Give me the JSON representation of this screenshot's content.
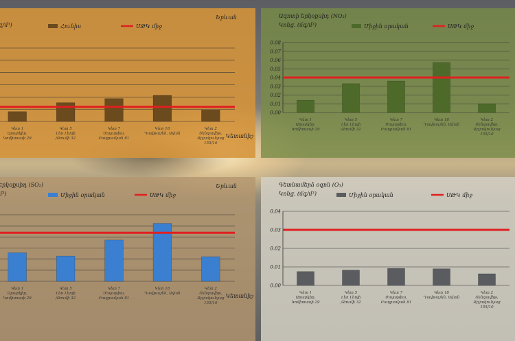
{
  "charts": [
    {
      "title": "",
      "unit": "զ/մ³)",
      "city": "Երևան",
      "xlabel": "Կետանիշ",
      "ylabel": "",
      "legend": {
        "series": "Հունիս",
        "limit": "ՍԹԿ միջ"
      },
      "colors": {
        "bar": "#6b4a1e",
        "limit": "#e02020"
      }
    },
    {
      "title": "Ազոտի երկօքսիդ (NO₂)",
      "unit": "Կոնց. (մգ/մ³)",
      "city": "",
      "xlabel": "",
      "ylabel": "Կոնց. (մգ/մ³)",
      "legend": {
        "series": "Միջին օրական",
        "limit": "ՍԹԿ միջ"
      },
      "colors": {
        "bar": "#4e6a2a",
        "limit": "#e02020"
      }
    },
    {
      "title": "երկօքսիդ (SO₂)",
      "unit": "մ³)",
      "city": "Երևան",
      "xlabel": "Կետանիշ",
      "ylabel": "",
      "legend": {
        "series": "Միջին օրական",
        "limit": "ՍԹԿ միջ"
      },
      "colors": {
        "bar": "#3a7fd0",
        "limit": "#e02020"
      }
    },
    {
      "title": "Գետնամերձ օզոն (O₃)",
      "unit": "Կոնց. (մգ/մ³)",
      "city": "",
      "xlabel": "",
      "ylabel": "Կոնց. (մգ/մ³)",
      "legend": {
        "series": "Միջին օրական",
        "limit": "ՍԹԿ միջ"
      },
      "colors": {
        "bar": "#5a5c60",
        "limit": "#e02020"
      }
    }
  ],
  "chart_data": [
    {
      "type": "bar",
      "categories": [
        "Կետ 1 (Արաբկիր, Կոմիտասի 29)",
        "Կետ 5 (Լեո Լեոյի /Թումի 32)",
        "Կետ 7 (Մալաթիա, Բաղրամյան 81)",
        "Կետ 18 (Դավթաշեն, Ավան)",
        "Կետ 2 (Շենգավիթ, Արշակունյաց 155/10)"
      ],
      "series": [
        {
          "name": "Հունիս",
          "values": [
            0.012,
            0.023,
            0.028,
            0.032,
            0.014
          ]
        }
      ],
      "limit": 0.018,
      "ylim": [
        0,
        0.09
      ],
      "yticks": []
    },
    {
      "type": "bar",
      "categories": [
        "Կետ 1 (Արաբկիր, Կոմիտասի 29)",
        "Կետ 5 (Լեո Լեոյի /Թումի 32)",
        "Կետ 7 (Մալաթիա, Բաղրամյան 81)",
        "Կետ 18 (Դավթաշեն, Ավան)",
        "Կետ 2 (Շենգավիթ, Արշակունյաց 155/10)"
      ],
      "series": [
        {
          "name": "Միջին օրական",
          "values": [
            0.014,
            0.033,
            0.036,
            0.057,
            0.01
          ]
        }
      ],
      "limit": 0.04,
      "ylim": [
        0,
        0.08
      ],
      "yticks": [
        "0.00",
        "0.01",
        "0.02",
        "0.03",
        "0.04",
        "0.05",
        "0.06",
        "0.07",
        "0.08"
      ]
    },
    {
      "type": "bar",
      "categories": [
        "Կետ 1 (Արաբկիր, Կոմիտասի 29)",
        "Կետ 5 (Լեո Լեոյի /Թումի 32)",
        "Կետ 7 (Մալաթիա, Բաղրամյան 81)",
        "Կետ 18 (Դավթաշեն, Ավան)",
        "Կետ 2 (Շենգավիթ, Արշակունյաց 155/10)"
      ],
      "series": [
        {
          "name": "Միջին օրական",
          "values": [
            0.043,
            0.038,
            0.062,
            0.087,
            0.037
          ]
        }
      ],
      "limit": 0.073,
      "ylim": [
        0,
        0.1
      ],
      "yticks": []
    },
    {
      "type": "bar",
      "categories": [
        "Կետ 1 (Արաբկիր, Կոմիտասի 29)",
        "Կետ 5 (Լեո Լեոյի /Թումի 32)",
        "Կետ 7 (Մալաթիա, Բաղրամյան 81)",
        "Կետ 18 (Դավթաշեն, Ավան)",
        "Կետ 2 (Շենգավիթ, Արշակունյաց 155/10)"
      ],
      "series": [
        {
          "name": "Միջին օրական",
          "values": [
            0.0075,
            0.0083,
            0.0092,
            0.009,
            0.0063
          ]
        }
      ],
      "limit": 0.03,
      "ylim": [
        0,
        0.04
      ],
      "yticks": [
        "0.00",
        "0.01",
        "0.02",
        "0.03",
        "0.04"
      ]
    }
  ]
}
